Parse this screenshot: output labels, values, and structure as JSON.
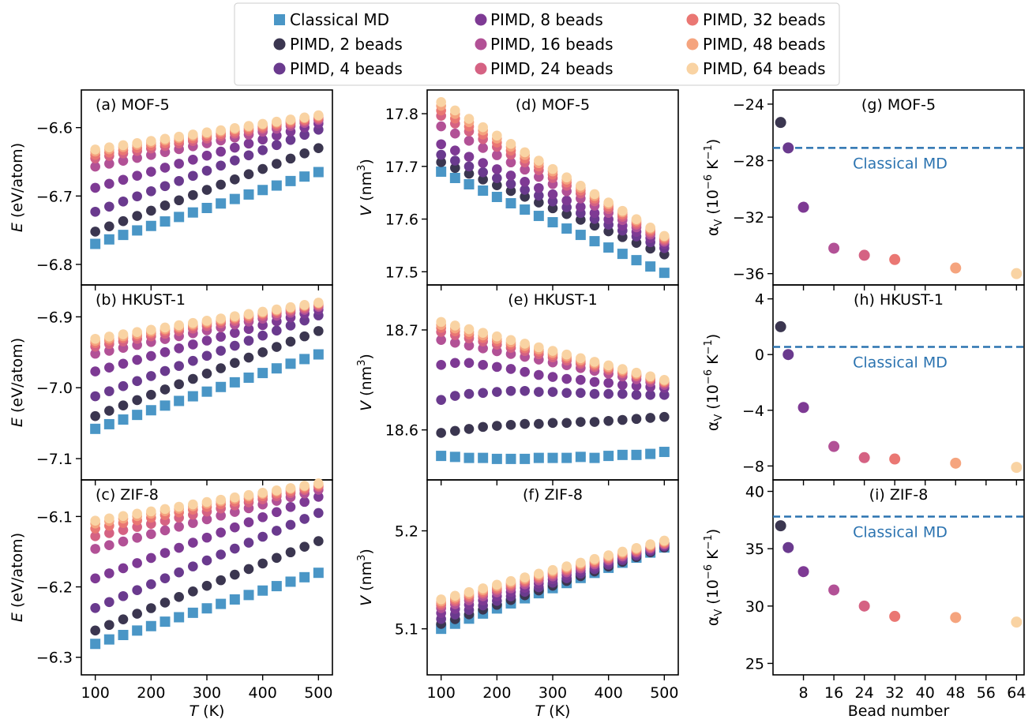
{
  "legend": {
    "entries": [
      {
        "label": "Classical MD",
        "marker": "square",
        "color": "#4a96c6"
      },
      {
        "label": "PIMD, 2 beads",
        "marker": "circle",
        "color": "#3b3650"
      },
      {
        "label": "PIMD, 4 beads",
        "marker": "circle",
        "color": "#6a3a8e"
      },
      {
        "label": "PIMD, 8 beads",
        "marker": "circle",
        "color": "#7e3a94"
      },
      {
        "label": "PIMD, 16 beads",
        "marker": "circle",
        "color": "#b25196"
      },
      {
        "label": "PIMD, 24 beads",
        "marker": "circle",
        "color": "#d56283"
      },
      {
        "label": "PIMD, 32 beads",
        "marker": "circle",
        "color": "#ea7773"
      },
      {
        "label": "PIMD, 48 beads",
        "marker": "circle",
        "color": "#f5a47e"
      },
      {
        "label": "PIMD, 64 beads",
        "marker": "circle",
        "color": "#f9d3a3"
      }
    ]
  },
  "axis_labels": {
    "energy_prefix": "E",
    "energy_unit": " (eV/atom)",
    "volume_prefix": "V",
    "volume_unit": " (nm",
    "volume_power": "3",
    "volume_close": ")",
    "alpha_symbol": "α",
    "alpha_sub": "V",
    "alpha_unit": " (10",
    "alpha_exp": "−6",
    "alpha_k": " K",
    "alpha_kexp": "−1",
    "alpha_close": ")",
    "temperature_prefix": "T",
    "temperature_unit": " (K)",
    "bead_number": "Bead number"
  },
  "reference_label": "Classical MD",
  "chart_data": [
    {
      "type": "scatter",
      "title": "(a) MOF-5",
      "quantity": "E",
      "ylim": [
        -6.83,
        -6.545
      ],
      "yticks": [
        -6.8,
        -6.7,
        -6.6
      ],
      "x": [
        100,
        125,
        150,
        175,
        200,
        225,
        250,
        275,
        300,
        325,
        350,
        375,
        400,
        425,
        450,
        475,
        500
      ],
      "series": [
        {
          "name": "Classical MD",
          "start": -6.77,
          "end": -6.665
        },
        {
          "name": "PIMD, 2 beads",
          "start": -6.752,
          "end": -6.63
        },
        {
          "name": "PIMD, 4 beads",
          "start": -6.723,
          "end": -6.603
        },
        {
          "name": "PIMD, 8 beads",
          "start": -6.688,
          "end": -6.594
        },
        {
          "name": "PIMD, 16 beads",
          "start": -6.657,
          "end": -6.589
        },
        {
          "name": "PIMD, 24 beads",
          "start": -6.645,
          "end": -6.587
        },
        {
          "name": "PIMD, 32 beads",
          "start": -6.64,
          "end": -6.585
        },
        {
          "name": "PIMD, 48 beads",
          "start": -6.635,
          "end": -6.583
        },
        {
          "name": "PIMD, 64 beads",
          "start": -6.632,
          "end": -6.582
        }
      ]
    },
    {
      "type": "scatter",
      "title": "(b) HKUST-1",
      "quantity": "E",
      "ylim": [
        -7.13,
        -6.855
      ],
      "yticks": [
        -7.1,
        -7.0,
        -6.9
      ],
      "x": [
        100,
        125,
        150,
        175,
        200,
        225,
        250,
        275,
        300,
        325,
        350,
        375,
        400,
        425,
        450,
        475,
        500
      ],
      "series": [
        {
          "name": "Classical MD",
          "start": -7.058,
          "end": -6.953
        },
        {
          "name": "PIMD, 2 beads",
          "start": -7.04,
          "end": -6.92
        },
        {
          "name": "PIMD, 4 beads",
          "start": -7.012,
          "end": -6.898
        },
        {
          "name": "PIMD, 8 beads",
          "start": -6.977,
          "end": -6.89
        },
        {
          "name": "PIMD, 16 beads",
          "start": -6.952,
          "end": -6.886
        },
        {
          "name": "PIMD, 24 beads",
          "start": -6.942,
          "end": -6.884
        },
        {
          "name": "PIMD, 32 beads",
          "start": -6.937,
          "end": -6.882
        },
        {
          "name": "PIMD, 48 beads",
          "start": -6.934,
          "end": -6.881
        },
        {
          "name": "PIMD, 64 beads",
          "start": -6.931,
          "end": -6.88
        }
      ]
    },
    {
      "type": "scatter",
      "title": "(c) ZIF-8",
      "quantity": "E",
      "ylim": [
        -6.325,
        -6.048
      ],
      "yticks": [
        -6.3,
        -6.2,
        -6.1
      ],
      "x": [
        100,
        125,
        150,
        175,
        200,
        225,
        250,
        275,
        300,
        325,
        350,
        375,
        400,
        425,
        450,
        475,
        500
      ],
      "series": [
        {
          "name": "Classical MD",
          "start": -6.281,
          "end": -6.18
        },
        {
          "name": "PIMD, 2 beads",
          "start": -6.262,
          "end": -6.135
        },
        {
          "name": "PIMD, 4 beads",
          "start": -6.23,
          "end": -6.095
        },
        {
          "name": "PIMD, 8 beads",
          "start": -6.188,
          "end": -6.072
        },
        {
          "name": "PIMD, 16 beads",
          "start": -6.146,
          "end": -6.062
        },
        {
          "name": "PIMD, 24 beads",
          "start": -6.128,
          "end": -6.058
        },
        {
          "name": "PIMD, 32 beads",
          "start": -6.117,
          "end": -6.056
        },
        {
          "name": "PIMD, 48 beads",
          "start": -6.11,
          "end": -6.054
        },
        {
          "name": "PIMD, 64 beads",
          "start": -6.106,
          "end": -6.053
        }
      ]
    },
    {
      "type": "scatter",
      "title": "(d) MOF-5",
      "quantity": "V",
      "ylim": [
        17.475,
        17.845
      ],
      "yticks": [
        17.5,
        17.6,
        17.7,
        17.8
      ],
      "x": [
        100,
        125,
        150,
        175,
        200,
        225,
        250,
        275,
        300,
        325,
        350,
        375,
        400,
        425,
        450,
        475,
        500
      ],
      "series": [
        {
          "name": "Classical MD",
          "start": 17.69,
          "end": 17.498
        },
        {
          "name": "PIMD, 2 beads",
          "start": 17.708,
          "end": 17.533
        },
        {
          "name": "PIMD, 4 beads",
          "start": 17.722,
          "end": 17.545
        },
        {
          "name": "PIMD, 8 beads",
          "start": 17.742,
          "end": 17.552
        },
        {
          "name": "PIMD, 16 beads",
          "start": 17.776,
          "end": 17.557
        },
        {
          "name": "PIMD, 24 beads",
          "start": 17.796,
          "end": 17.56
        },
        {
          "name": "PIMD, 32 beads",
          "start": 17.806,
          "end": 17.563
        },
        {
          "name": "PIMD, 48 beads",
          "start": 17.815,
          "end": 17.566
        },
        {
          "name": "PIMD, 64 beads",
          "start": 17.822,
          "end": 17.568
        }
      ]
    },
    {
      "type": "scatter",
      "title": "(e) HKUST-1",
      "quantity": "V",
      "ylim": [
        18.55,
        18.745
      ],
      "yticks": [
        18.6,
        18.7
      ],
      "x": [
        100,
        125,
        150,
        175,
        200,
        225,
        250,
        275,
        300,
        325,
        350,
        375,
        400,
        425,
        450,
        475,
        500
      ],
      "series": [
        {
          "name": "Classical MD",
          "values": [
            18.574,
            18.573,
            18.572,
            18.572,
            18.571,
            18.571,
            18.571,
            18.572,
            18.572,
            18.572,
            18.573,
            18.572,
            18.574,
            18.575,
            18.575,
            18.576,
            18.578
          ]
        },
        {
          "name": "PIMD, 2 beads",
          "values": [
            18.597,
            18.599,
            18.601,
            18.603,
            18.604,
            18.605,
            18.606,
            18.606,
            18.607,
            18.607,
            18.608,
            18.608,
            18.609,
            18.61,
            18.611,
            18.612,
            18.613
          ]
        },
        {
          "name": "PIMD, 4 beads",
          "values": [
            18.63,
            18.634,
            18.636,
            18.637,
            18.638,
            18.639,
            18.639,
            18.638,
            18.638,
            18.637,
            18.637,
            18.636,
            18.636,
            18.636,
            18.635,
            18.635,
            18.635
          ]
        },
        {
          "name": "PIMD, 8 beads",
          "values": [
            18.665,
            18.667,
            18.667,
            18.665,
            18.663,
            18.661,
            18.658,
            18.655,
            18.653,
            18.651,
            18.65,
            18.648,
            18.647,
            18.645,
            18.644,
            18.643,
            18.642
          ]
        },
        {
          "name": "PIMD, 16 beads",
          "start": 18.69,
          "end": 18.645
        },
        {
          "name": "PIMD, 24 beads",
          "start": 18.698,
          "end": 18.647
        },
        {
          "name": "PIMD, 32 beads",
          "start": 18.702,
          "end": 18.648
        },
        {
          "name": "PIMD, 48 beads",
          "start": 18.705,
          "end": 18.649
        },
        {
          "name": "PIMD, 64 beads",
          "start": 18.708,
          "end": 18.65
        }
      ]
    },
    {
      "type": "scatter",
      "title": "(f) ZIF-8",
      "quantity": "V",
      "ylim": [
        5.053,
        5.252
      ],
      "yticks": [
        5.1,
        5.2
      ],
      "x": [
        100,
        125,
        150,
        175,
        200,
        225,
        250,
        275,
        300,
        325,
        350,
        375,
        400,
        425,
        450,
        475,
        500
      ],
      "series": [
        {
          "name": "Classical MD",
          "start": 5.1,
          "end": 5.183
        },
        {
          "name": "PIMD, 2 beads",
          "start": 5.105,
          "end": 5.183
        },
        {
          "name": "PIMD, 4 beads",
          "start": 5.11,
          "end": 5.184
        },
        {
          "name": "PIMD, 8 beads",
          "start": 5.116,
          "end": 5.185
        },
        {
          "name": "PIMD, 16 beads",
          "start": 5.121,
          "end": 5.186
        },
        {
          "name": "PIMD, 24 beads",
          "start": 5.124,
          "end": 5.187
        },
        {
          "name": "PIMD, 32 beads",
          "start": 5.126,
          "end": 5.188
        },
        {
          "name": "PIMD, 48 beads",
          "start": 5.128,
          "end": 5.189
        },
        {
          "name": "PIMD, 64 beads",
          "start": 5.13,
          "end": 5.19
        }
      ]
    },
    {
      "type": "scatter",
      "title": "(g) MOF-5",
      "quantity": "alpha",
      "ylim": [
        -36.8,
        -23.0
      ],
      "yticks": [
        -36,
        -32,
        -28,
        -24
      ],
      "classical_md": -27.1,
      "x": [
        2,
        4,
        8,
        16,
        24,
        32,
        48,
        64
      ],
      "series": [
        {
          "name": "PIMD",
          "values": [
            -25.3,
            -27.1,
            -31.3,
            -34.2,
            -34.7,
            -35.0,
            -35.6,
            -36.0
          ]
        }
      ]
    },
    {
      "type": "scatter",
      "title": "(h) HKUST-1",
      "quantity": "alpha",
      "ylim": [
        -9.0,
        5.0
      ],
      "yticks": [
        -8,
        -4,
        0,
        4
      ],
      "classical_md": 0.55,
      "x": [
        2,
        4,
        8,
        16,
        24,
        32,
        48,
        64
      ],
      "series": [
        {
          "name": "PIMD",
          "values": [
            2.0,
            0.0,
            -3.8,
            -6.6,
            -7.4,
            -7.5,
            -7.8,
            -8.1
          ]
        }
      ]
    },
    {
      "type": "scatter",
      "title": "(i) ZIF-8",
      "quantity": "alpha",
      "ylim": [
        24.0,
        41.0
      ],
      "yticks": [
        25,
        30,
        35,
        40
      ],
      "classical_md": 37.8,
      "x": [
        2,
        4,
        8,
        16,
        24,
        32,
        48,
        64
      ],
      "series": [
        {
          "name": "PIMD",
          "values": [
            37.0,
            35.1,
            33.0,
            31.4,
            30.0,
            29.1,
            29.0,
            28.6
          ]
        }
      ]
    }
  ],
  "shared_axes": {
    "temperature_xlim": [
      75,
      525
    ],
    "temperature_xticks": [
      100,
      200,
      300,
      400,
      500
    ],
    "bead_xlim": [
      0,
      66
    ],
    "bead_xticks": [
      8,
      16,
      24,
      32,
      40,
      48,
      56,
      64
    ]
  }
}
